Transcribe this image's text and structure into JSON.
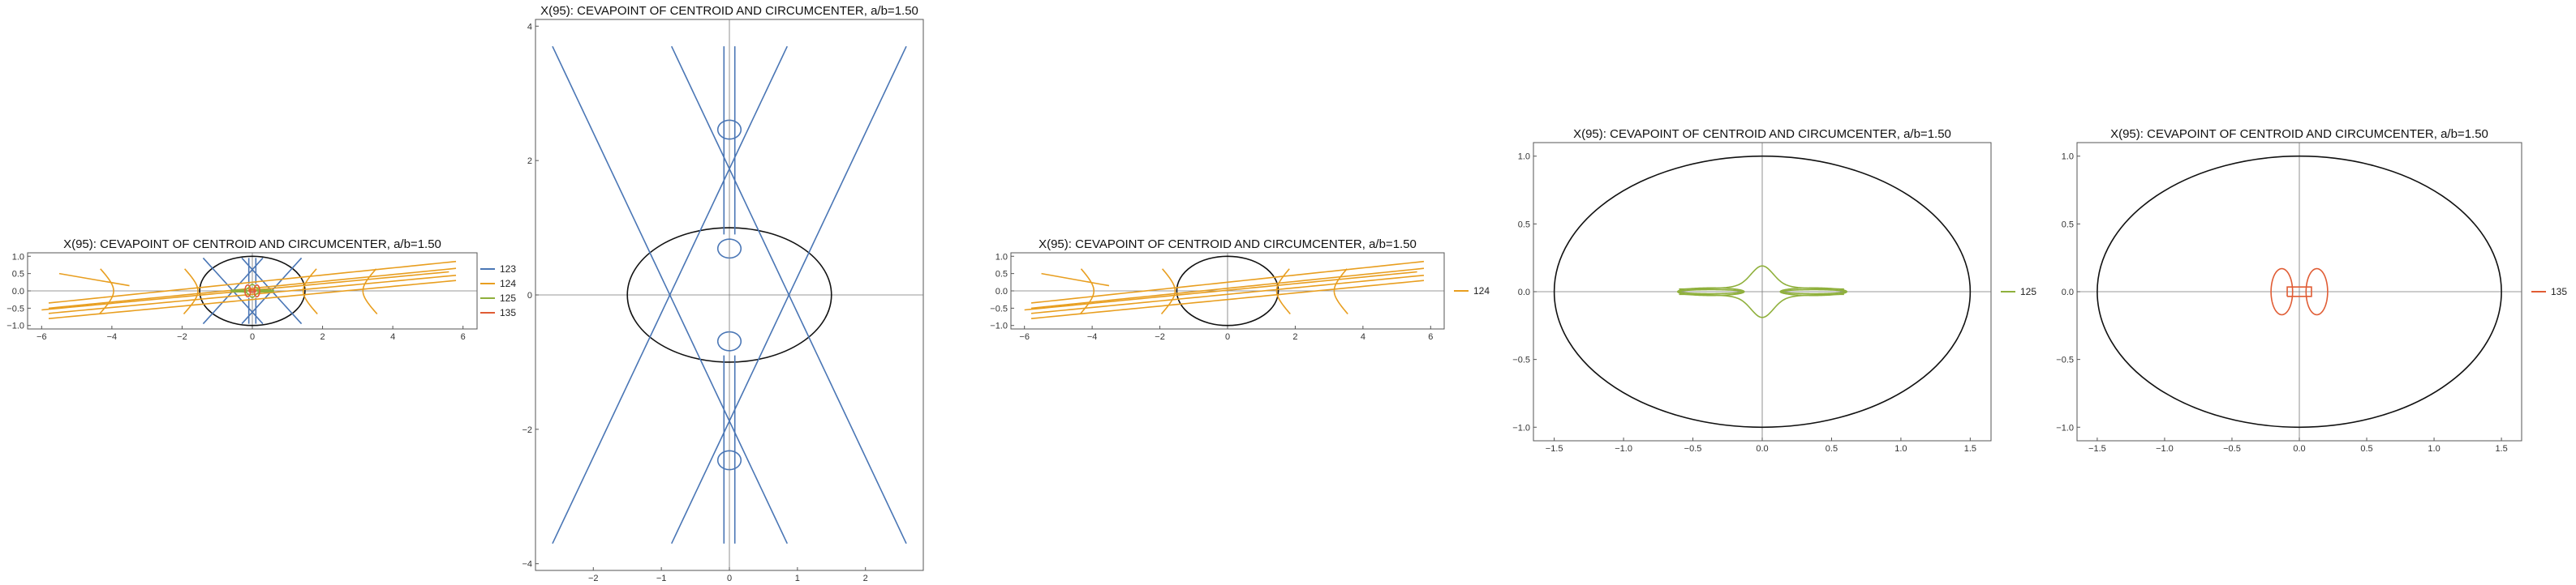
{
  "colors": {
    "123": "#4a76b5",
    "124": "#e89e1f",
    "125": "#8fb03c",
    "135": "#e05c34",
    "ellipse": "#111111",
    "axis": "#777777"
  },
  "chart_data": [
    {
      "type": "line",
      "title": "X(95): CEVAPOINT OF CENTROID AND CIRCUMCENTER, a/b=1.50",
      "xlim": [
        -6.4,
        6.4
      ],
      "ylim": [
        -1.1,
        1.1
      ],
      "xticks": [
        -6,
        -4,
        -2,
        0,
        2,
        4,
        6
      ],
      "xtick_labels": [
        "−6",
        "−4",
        "−2",
        "0",
        "2",
        "4",
        "6"
      ],
      "yticks": [
        -1.0,
        -0.5,
        0.0,
        0.5,
        1.0
      ],
      "ytick_labels": [
        "−1.0",
        "−0.5",
        "0.0",
        "0.5",
        "1.0"
      ],
      "ellipse": {
        "a": 1.5,
        "b": 1.0
      },
      "series": [
        {
          "name": "123",
          "color_key": "123"
        },
        {
          "name": "124",
          "color_key": "124"
        },
        {
          "name": "125",
          "color_key": "125"
        },
        {
          "name": "135",
          "color_key": "135"
        }
      ],
      "legend": "right"
    },
    {
      "type": "line",
      "title": "X(95): CEVAPOINT OF CENTROID AND CIRCUMCENTER, a/b=1.50",
      "xlim": [
        -2.85,
        2.85
      ],
      "ylim": [
        -4.1,
        4.1
      ],
      "xticks": [
        -2,
        -1,
        0,
        1,
        2
      ],
      "xtick_labels": [
        "−2",
        "−1",
        "0",
        "1",
        "2"
      ],
      "yticks": [
        -4,
        -2,
        0,
        2,
        4
      ],
      "ytick_labels": [
        "−4",
        "−2",
        "0",
        "2",
        "4"
      ],
      "ellipse": {
        "a": 1.5,
        "b": 1.0
      },
      "series": [],
      "legend": "none"
    },
    {
      "type": "line",
      "title": "X(95): CEVAPOINT OF CENTROID AND CIRCUMCENTER, a/b=1.50",
      "xlim": [
        -6.4,
        6.4
      ],
      "ylim": [
        -1.1,
        1.1
      ],
      "xticks": [
        -6,
        -4,
        -2,
        0,
        2,
        4,
        6
      ],
      "xtick_labels": [
        "−6",
        "−4",
        "−2",
        "0",
        "2",
        "4",
        "6"
      ],
      "yticks": [
        -1.0,
        -0.5,
        0.0,
        0.5,
        1.0
      ],
      "ytick_labels": [
        "−1.0",
        "−0.5",
        "0.0",
        "0.5",
        "1.0"
      ],
      "ellipse": {
        "a": 1.5,
        "b": 1.0
      },
      "series": [
        {
          "name": "123",
          "color_key": "123"
        }
      ],
      "legend": "right"
    },
    {
      "type": "line",
      "title": "X(95): CEVAPOINT OF CENTROID AND CIRCUMCENTER, a/b=1.50",
      "xlim": [
        -6.4,
        6.4
      ],
      "ylim": [
        -1.1,
        1.1
      ],
      "xticks": [
        -6,
        -4,
        -2,
        0,
        2,
        4,
        6
      ],
      "xtick_labels": [
        "−6",
        "−4",
        "−2",
        "0",
        "2",
        "4",
        "6"
      ],
      "yticks": [
        -1.0,
        -0.5,
        0.0,
        0.5,
        1.0
      ],
      "ytick_labels": [
        "−1.0",
        "−0.5",
        "0.0",
        "0.5",
        "1.0"
      ],
      "ellipse": {
        "a": 1.5,
        "b": 1.0
      },
      "series": [
        {
          "name": "124",
          "color_key": "124"
        }
      ],
      "legend": "right"
    },
    {
      "type": "line",
      "title": "X(95): CEVAPOINT OF CENTROID AND CIRCUMCENTER, a/b=1.50",
      "xlim": [
        -1.65,
        1.65
      ],
      "ylim": [
        -1.1,
        1.1
      ],
      "xticks": [
        -1.5,
        -1.0,
        -0.5,
        0.0,
        0.5,
        1.0,
        1.5
      ],
      "xtick_labels": [
        "−1.5",
        "−1.0",
        "−0.5",
        "0.0",
        "0.5",
        "1.0",
        "1.5"
      ],
      "yticks": [
        -1.0,
        -0.5,
        0.0,
        0.5,
        1.0
      ],
      "ytick_labels": [
        "−1.0",
        "−0.5",
        "0.0",
        "0.5",
        "1.0"
      ],
      "ellipse": {
        "a": 1.5,
        "b": 1.0
      },
      "series": [
        {
          "name": "125",
          "color_key": "125"
        }
      ],
      "legend": "right"
    },
    {
      "type": "line",
      "title": "X(95): CEVAPOINT OF CENTROID AND CIRCUMCENTER, a/b=1.50",
      "xlim": [
        -1.65,
        1.65
      ],
      "ylim": [
        -1.1,
        1.1
      ],
      "xticks": [
        -1.5,
        -1.0,
        -0.5,
        0.0,
        0.5,
        1.0,
        1.5
      ],
      "xtick_labels": [
        "−1.5",
        "−1.0",
        "−0.5",
        "0.0",
        "0.5",
        "1.0",
        "1.5"
      ],
      "yticks": [
        -1.0,
        -0.5,
        0.0,
        0.5,
        1.0
      ],
      "ytick_labels": [
        "−1.0",
        "−0.5",
        "0.0",
        "0.5",
        "1.0"
      ],
      "ellipse": {
        "a": 1.5,
        "b": 1.0
      },
      "series": [
        {
          "name": "135",
          "color_key": "135"
        }
      ],
      "legend": "right"
    }
  ]
}
